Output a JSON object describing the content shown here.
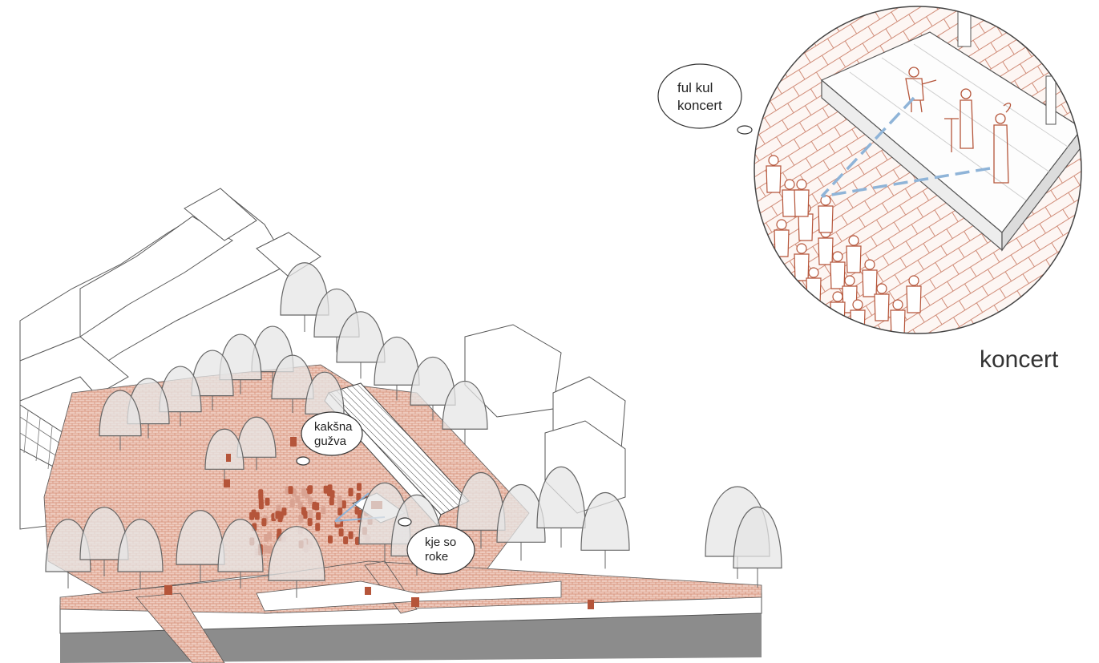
{
  "speech_bubbles": {
    "concert_thought": [
      "ful kul",
      "koncert"
    ],
    "crowd_thought": [
      "kakšna",
      "gužva"
    ],
    "people_thought": [
      "kje so",
      "roke"
    ]
  },
  "inset": {
    "caption": "koncert"
  },
  "colors": {
    "pavement": "#d99a86",
    "figure": "#b5553a",
    "tree_fill": "#e6e6e6",
    "tree_stroke": "#666666",
    "sightline": "#8fb4d8",
    "ground_section": "#8c8c8c",
    "linework": "#555555"
  },
  "icons": [
    "tree-icon",
    "person-icon",
    "speech-bubble-icon",
    "stage-icon"
  ]
}
